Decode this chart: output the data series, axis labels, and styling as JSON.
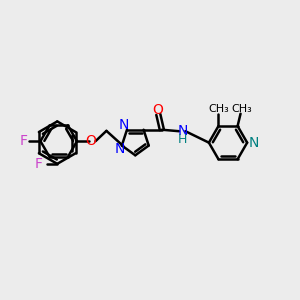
{
  "bg_color": "#ececec",
  "bond_color": "#000000",
  "bond_width": 1.8,
  "fig_size": [
    3.0,
    3.0
  ],
  "dpi": 100,
  "xlim": [
    0,
    10
  ],
  "ylim": [
    0,
    10
  ],
  "F_color": "#cc44cc",
  "O_color": "#ff0000",
  "N_blue": "#0000ff",
  "N_teal": "#008080",
  "H_color": "#008080"
}
